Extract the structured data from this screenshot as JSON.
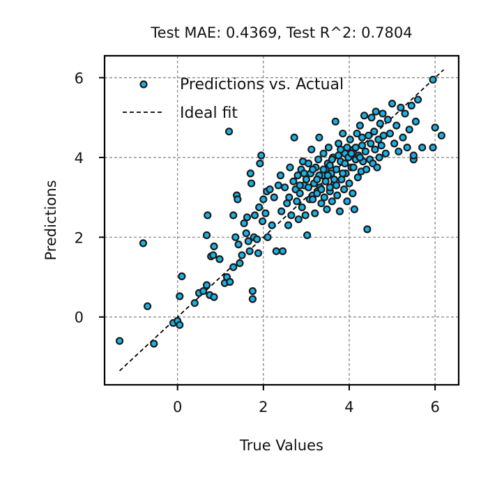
{
  "chart_data": {
    "type": "scatter",
    "title": "Test MAE: 0.4369, Test R^2: 0.7804",
    "xlabel": "True Values",
    "ylabel": "Predictions",
    "xlim": [
      -1.7,
      6.55
    ],
    "ylim": [
      -1.7,
      6.55
    ],
    "xticks": [
      0,
      2,
      4,
      6
    ],
    "yticks": [
      0,
      2,
      4,
      6
    ],
    "grid": true,
    "legend_position": "top-left",
    "colors": {
      "points": "#1ab2e6",
      "point_edge": "#1a1a1a",
      "ideal_line": "#000000",
      "grid": "#808080"
    },
    "series": [
      {
        "name": "Predictions vs. Actual",
        "points": [
          [
            -1.35,
            -0.6
          ],
          [
            -0.55,
            -0.67
          ],
          [
            -0.7,
            0.27
          ],
          [
            -0.8,
            1.85
          ],
          [
            -0.1,
            -0.15
          ],
          [
            0.0,
            -0.1
          ],
          [
            0.05,
            -0.2
          ],
          [
            0.05,
            0.52
          ],
          [
            0.1,
            1.02
          ],
          [
            0.4,
            0.35
          ],
          [
            0.5,
            0.6
          ],
          [
            0.6,
            0.65
          ],
          [
            0.68,
            0.8
          ],
          [
            0.75,
            0.55
          ],
          [
            0.85,
            0.5
          ],
          [
            0.78,
            1.52
          ],
          [
            0.83,
            1.55
          ],
          [
            0.85,
            1.77
          ],
          [
            0.98,
            1.45
          ],
          [
            0.68,
            2.05
          ],
          [
            0.7,
            2.55
          ],
          [
            1.1,
            0.85
          ],
          [
            1.15,
            1.0
          ],
          [
            1.2,
            4.65
          ],
          [
            1.22,
            0.88
          ],
          [
            1.3,
            1.25
          ],
          [
            1.3,
            2.55
          ],
          [
            1.35,
            2.0
          ],
          [
            1.38,
            3.05
          ],
          [
            1.4,
            2.95
          ],
          [
            1.42,
            1.82
          ],
          [
            1.45,
            1.35
          ],
          [
            1.5,
            1.55
          ],
          [
            1.55,
            2.35
          ],
          [
            1.6,
            2.1
          ],
          [
            1.62,
            2.5
          ],
          [
            1.65,
            1.9
          ],
          [
            1.68,
            1.65
          ],
          [
            1.7,
            3.6
          ],
          [
            1.72,
            3.35
          ],
          [
            1.75,
            0.45
          ],
          [
            1.75,
            0.65
          ],
          [
            1.78,
            2.0
          ],
          [
            1.8,
            2.55
          ],
          [
            1.85,
            1.95
          ],
          [
            1.88,
            1.6
          ],
          [
            1.9,
            2.75
          ],
          [
            1.92,
            3.85
          ],
          [
            1.95,
            4.05
          ],
          [
            1.98,
            2.4
          ],
          [
            2.0,
            2.95
          ],
          [
            2.05,
            2.6
          ],
          [
            2.08,
            3.15
          ],
          [
            2.1,
            2.0
          ],
          [
            2.15,
            3.2
          ],
          [
            2.2,
            2.3
          ],
          [
            2.25,
            3.0
          ],
          [
            2.3,
            1.65
          ],
          [
            2.35,
            3.3
          ],
          [
            2.4,
            3.55
          ],
          [
            2.42,
            2.65
          ],
          [
            2.45,
            1.65
          ],
          [
            2.5,
            3.25
          ],
          [
            2.55,
            2.85
          ],
          [
            2.58,
            2.3
          ],
          [
            2.6,
            3.0
          ],
          [
            2.62,
            3.75
          ],
          [
            2.65,
            2.55
          ],
          [
            2.7,
            3.4
          ],
          [
            2.72,
            4.5
          ],
          [
            2.75,
            3.2
          ],
          [
            2.78,
            2.9
          ],
          [
            2.8,
            3.55
          ],
          [
            2.82,
            2.45
          ],
          [
            2.85,
            3.1
          ],
          [
            2.88,
            3.7
          ],
          [
            2.9,
            2.75
          ],
          [
            2.92,
            3.9
          ],
          [
            2.95,
            3.3
          ],
          [
            2.98,
            2.55
          ],
          [
            3.0,
            3.45
          ],
          [
            3.02,
            2.05
          ],
          [
            3.05,
            3.85
          ],
          [
            3.08,
            2.95
          ],
          [
            3.1,
            3.6
          ],
          [
            3.12,
            4.2
          ],
          [
            3.15,
            3.05
          ],
          [
            3.18,
            3.35
          ],
          [
            3.2,
            2.6
          ],
          [
            3.22,
            3.75
          ],
          [
            3.25,
            3.1
          ],
          [
            3.28,
            3.95
          ],
          [
            3.3,
            4.5
          ],
          [
            3.32,
            3.25
          ],
          [
            3.35,
            2.85
          ],
          [
            3.38,
            3.55
          ],
          [
            3.4,
            4.1
          ],
          [
            3.42,
            3.0
          ],
          [
            3.45,
            3.4
          ],
          [
            3.48,
            2.7
          ],
          [
            3.5,
            3.85
          ],
          [
            3.52,
            4.25
          ],
          [
            3.55,
            3.15
          ],
          [
            3.58,
            3.6
          ],
          [
            3.6,
            2.9
          ],
          [
            3.62,
            4.0
          ],
          [
            3.65,
            3.35
          ],
          [
            3.68,
            4.9
          ],
          [
            3.7,
            3.7
          ],
          [
            3.72,
            3.05
          ],
          [
            3.75,
            4.35
          ],
          [
            3.78,
            2.65
          ],
          [
            3.8,
            3.9
          ],
          [
            3.82,
            3.45
          ],
          [
            3.85,
            4.6
          ],
          [
            3.88,
            3.2
          ],
          [
            3.9,
            4.1
          ],
          [
            3.92,
            3.6
          ],
          [
            3.95,
            2.9
          ],
          [
            3.98,
            4.0
          ],
          [
            4.0,
            3.35
          ],
          [
            4.02,
            4.45
          ],
          [
            4.05,
            3.75
          ],
          [
            4.08,
            3.1
          ],
          [
            4.1,
            4.2
          ],
          [
            4.12,
            2.7
          ],
          [
            4.15,
            3.95
          ],
          [
            4.18,
            4.6
          ],
          [
            4.2,
            3.5
          ],
          [
            4.22,
            4.05
          ],
          [
            4.25,
            4.8
          ],
          [
            4.28,
            3.65
          ],
          [
            4.3,
            4.3
          ],
          [
            4.32,
            3.9
          ],
          [
            4.35,
            5.05
          ],
          [
            4.38,
            4.15
          ],
          [
            4.4,
            3.7
          ],
          [
            4.42,
            2.2
          ],
          [
            4.45,
            4.55
          ],
          [
            4.48,
            3.95
          ],
          [
            4.5,
            4.35
          ],
          [
            4.52,
            5.0
          ],
          [
            4.55,
            3.85
          ],
          [
            4.58,
            4.65
          ],
          [
            4.6,
            4.2
          ],
          [
            4.62,
            5.15
          ],
          [
            4.65,
            3.75
          ],
          [
            4.68,
            4.45
          ],
          [
            4.7,
            4.0
          ],
          [
            4.72,
            4.85
          ],
          [
            4.75,
            4.3
          ],
          [
            4.78,
            5.1
          ],
          [
            4.8,
            4.55
          ],
          [
            4.85,
            4.1
          ],
          [
            4.9,
            4.95
          ],
          [
            4.95,
            4.6
          ],
          [
            5.0,
            5.35
          ],
          [
            5.05,
            4.35
          ],
          [
            5.1,
            4.8
          ],
          [
            5.15,
            4.15
          ],
          [
            5.2,
            5.25
          ],
          [
            5.25,
            4.5
          ],
          [
            5.3,
            5.1
          ],
          [
            5.35,
            4.25
          ],
          [
            5.4,
            4.7
          ],
          [
            5.45,
            5.3
          ],
          [
            5.5,
            3.95
          ],
          [
            5.5,
            4.05
          ],
          [
            5.55,
            4.9
          ],
          [
            5.6,
            5.45
          ],
          [
            5.7,
            4.25
          ],
          [
            5.95,
            5.95
          ],
          [
            5.95,
            4.25
          ],
          [
            6.0,
            4.75
          ],
          [
            6.15,
            4.55
          ],
          [
            3.3,
            3.55
          ],
          [
            3.55,
            3.8
          ],
          [
            3.75,
            4.05
          ],
          [
            3.15,
            2.95
          ],
          [
            2.95,
            3.6
          ],
          [
            3.45,
            3.7
          ],
          [
            3.85,
            3.6
          ],
          [
            4.05,
            4.1
          ],
          [
            3.65,
            3.45
          ],
          [
            3.35,
            3.2
          ],
          [
            3.95,
            4.25
          ],
          [
            3.6,
            3.95
          ],
          [
            4.15,
            4.25
          ],
          [
            3.25,
            3.45
          ],
          [
            3.05,
            3.25
          ],
          [
            3.7,
            3.3
          ],
          [
            4.25,
            4.0
          ],
          [
            3.5,
            3.55
          ],
          [
            3.9,
            3.85
          ],
          [
            4.1,
            3.75
          ],
          [
            3.4,
            3.7
          ],
          [
            3.8,
            4.2
          ],
          [
            3.55,
            3.25
          ],
          [
            4.3,
            4.5
          ],
          [
            2.85,
            3.3
          ],
          [
            3.15,
            3.7
          ]
        ]
      },
      {
        "name": "Ideal fit",
        "line": [
          [
            -1.35,
            -1.35
          ],
          [
            6.2,
            6.2
          ]
        ]
      }
    ]
  }
}
